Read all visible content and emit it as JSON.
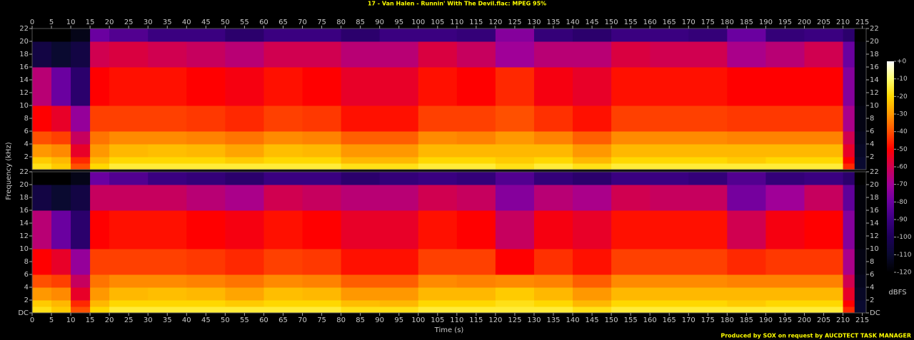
{
  "chart_data": [
    {
      "type": "heatmap",
      "title": "17 - Van Halen - Runnin' With The Devil.flac: MPEG 95%",
      "ylabel": "Frequency (kHz)",
      "xlim": [
        0,
        216
      ],
      "xticks": [
        0,
        5,
        10,
        15,
        20,
        25,
        30,
        35,
        40,
        45,
        50,
        55,
        60,
        65,
        70,
        75,
        80,
        85,
        90,
        95,
        100,
        105,
        110,
        115,
        120,
        125,
        130,
        135,
        140,
        145,
        150,
        155,
        160,
        165,
        170,
        175,
        180,
        185,
        190,
        195,
        200,
        205,
        210,
        215
      ],
      "ylim": [
        0,
        22
      ],
      "yticks": [
        2,
        4,
        6,
        8,
        10,
        12,
        14,
        16,
        18,
        20,
        22
      ],
      "x_edges": [
        0,
        5,
        10,
        15,
        20,
        30,
        40,
        50,
        60,
        70,
        80,
        90,
        100,
        110,
        120,
        130,
        140,
        150,
        160,
        170,
        180,
        190,
        200,
        210,
        213,
        216
      ],
      "y_edges": [
        0,
        1,
        2,
        4,
        6,
        10,
        16,
        20,
        22
      ],
      "values": [
        [
          -18,
          -22,
          -40,
          -20,
          -15,
          -15,
          -15,
          -15,
          -15,
          -15,
          -18,
          -18,
          -15,
          -15,
          -18,
          -15,
          -18,
          -15,
          -15,
          -15,
          -15,
          -15,
          -15,
          -45,
          -110
        ],
        [
          -22,
          -25,
          -45,
          -25,
          -20,
          -20,
          -20,
          -22,
          -20,
          -20,
          -25,
          -25,
          -20,
          -20,
          -22,
          -20,
          -25,
          -20,
          -20,
          -20,
          -22,
          -20,
          -20,
          -50,
          -110
        ],
        [
          -30,
          -32,
          -55,
          -30,
          -25,
          -24,
          -25,
          -28,
          -24,
          -25,
          -30,
          -30,
          -25,
          -25,
          -25,
          -25,
          -30,
          -25,
          -25,
          -25,
          -25,
          -25,
          -25,
          -55,
          -112
        ],
        [
          -40,
          -42,
          -62,
          -35,
          -32,
          -32,
          -33,
          -35,
          -32,
          -33,
          -38,
          -38,
          -32,
          -33,
          -30,
          -33,
          -38,
          -32,
          -32,
          -32,
          -33,
          -33,
          -33,
          -60,
          -114
        ],
        [
          -50,
          -55,
          -72,
          -42,
          -42,
          -42,
          -43,
          -45,
          -42,
          -43,
          -48,
          -48,
          -42,
          -42,
          -40,
          -44,
          -48,
          -42,
          -42,
          -42,
          -43,
          -43,
          -43,
          -68,
          -116
        ],
        [
          -65,
          -80,
          -95,
          -50,
          -48,
          -48,
          -50,
          -52,
          -48,
          -50,
          -55,
          -55,
          -48,
          -50,
          -45,
          -52,
          -55,
          -48,
          -48,
          -48,
          -50,
          -50,
          -50,
          -75,
          -118
        ],
        [
          -105,
          -110,
          -105,
          -60,
          -58,
          -60,
          -62,
          -65,
          -60,
          -60,
          -65,
          -65,
          -58,
          -62,
          -70,
          -65,
          -65,
          -58,
          -60,
          -60,
          -68,
          -65,
          -60,
          -80,
          -118
        ],
        [
          -120,
          -120,
          -115,
          -80,
          -85,
          -90,
          -90,
          -95,
          -90,
          -90,
          -95,
          -90,
          -90,
          -92,
          -75,
          -92,
          -95,
          -90,
          -90,
          -92,
          -80,
          -92,
          -90,
          -95,
          -120
        ]
      ],
      "colormap": [
        "#000000",
        "#0a0a30",
        "#1c0058",
        "#3a0080",
        "#6a00a0",
        "#a00098",
        "#d00050",
        "#ff0000",
        "#ff5000",
        "#ff9800",
        "#ffd800",
        "#ffff70",
        "#ffffff"
      ],
      "colorbar": {
        "label": "dBFS",
        "lim": [
          -120,
          0
        ],
        "ticks": [
          {
            "value": 0,
            "label": "+0"
          },
          -10,
          -20,
          -30,
          -40,
          -50,
          -60,
          -70,
          -80,
          -90,
          -100,
          -110,
          -120
        ]
      }
    },
    {
      "type": "heatmap",
      "xlabel": "Time (s)",
      "annotation": "Produced by SOX on request by AUCDTECT TASK MANAGER",
      "xlim": [
        0,
        216
      ],
      "xticks": [
        0,
        5,
        10,
        15,
        20,
        25,
        30,
        35,
        40,
        45,
        50,
        55,
        60,
        65,
        70,
        75,
        80,
        85,
        90,
        95,
        100,
        105,
        110,
        115,
        120,
        125,
        130,
        135,
        140,
        145,
        150,
        155,
        160,
        165,
        170,
        175,
        180,
        185,
        190,
        195,
        200,
        205,
        210,
        215
      ],
      "ylim": [
        0,
        22
      ],
      "yticks": [
        {
          "value": 0,
          "label": "DC"
        },
        2,
        4,
        6,
        8,
        10,
        12,
        14,
        16,
        18,
        20,
        22
      ],
      "x_edges": [
        0,
        5,
        10,
        15,
        20,
        30,
        40,
        50,
        60,
        70,
        80,
        90,
        100,
        110,
        120,
        130,
        140,
        150,
        160,
        170,
        180,
        190,
        200,
        210,
        213,
        216
      ],
      "y_edges": [
        0,
        1,
        2,
        4,
        6,
        10,
        16,
        20,
        22
      ],
      "values": [
        [
          -18,
          -22,
          -40,
          -20,
          -15,
          -15,
          -15,
          -15,
          -15,
          -15,
          -18,
          -18,
          -15,
          -15,
          -15,
          -15,
          -18,
          -15,
          -15,
          -15,
          -15,
          -15,
          -15,
          -45,
          -110
        ],
        [
          -22,
          -25,
          -45,
          -25,
          -20,
          -20,
          -20,
          -22,
          -20,
          -20,
          -24,
          -25,
          -20,
          -20,
          -18,
          -20,
          -25,
          -20,
          -20,
          -20,
          -22,
          -20,
          -20,
          -50,
          -110
        ],
        [
          -30,
          -32,
          -55,
          -30,
          -25,
          -24,
          -25,
          -28,
          -24,
          -25,
          -30,
          -30,
          -25,
          -25,
          -22,
          -25,
          -30,
          -25,
          -25,
          -25,
          -25,
          -25,
          -25,
          -55,
          -112
        ],
        [
          -40,
          -42,
          -62,
          -35,
          -32,
          -32,
          -33,
          -35,
          -32,
          -33,
          -38,
          -38,
          -32,
          -33,
          -32,
          -33,
          -38,
          -32,
          -32,
          -32,
          -33,
          -33,
          -33,
          -60,
          -114
        ],
        [
          -50,
          -55,
          -72,
          -42,
          -42,
          -42,
          -43,
          -45,
          -42,
          -43,
          -48,
          -48,
          -42,
          -42,
          -50,
          -44,
          -48,
          -42,
          -42,
          -42,
          -45,
          -43,
          -43,
          -68,
          -116
        ],
        [
          -65,
          -80,
          -95,
          -50,
          -48,
          -48,
          -50,
          -52,
          -48,
          -50,
          -55,
          -55,
          -48,
          -50,
          -62,
          -52,
          -55,
          -48,
          -48,
          -48,
          -60,
          -52,
          -50,
          -75,
          -118
        ],
        [
          -105,
          -110,
          -105,
          -62,
          -62,
          -62,
          -65,
          -68,
          -60,
          -62,
          -65,
          -65,
          -60,
          -62,
          -75,
          -65,
          -68,
          -60,
          -62,
          -62,
          -78,
          -70,
          -62,
          -82,
          -118
        ],
        [
          -120,
          -120,
          -115,
          -80,
          -85,
          -90,
          -92,
          -95,
          -90,
          -90,
          -95,
          -92,
          -90,
          -92,
          -85,
          -92,
          -95,
          -90,
          -90,
          -92,
          -85,
          -92,
          -90,
          -95,
          -120
        ]
      ]
    }
  ]
}
